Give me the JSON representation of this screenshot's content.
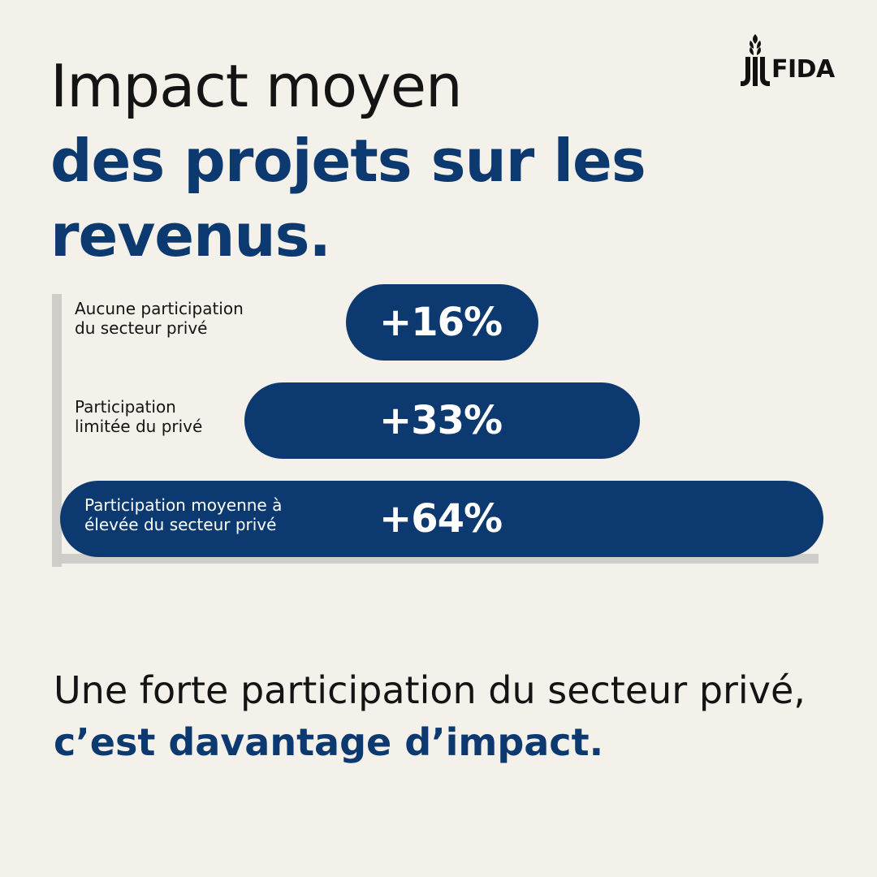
{
  "title": {
    "line1": "Impact moyen",
    "line2": "des projets sur les",
    "line3": "revenus."
  },
  "logo": {
    "text": "FIDA"
  },
  "chart_data": {
    "type": "bar",
    "orientation": "horizontal",
    "title": "Impact moyen des projets sur les revenus.",
    "categories": [
      "Aucune participation du secteur privé",
      "Participation limitée du privé",
      "Participation moyenne à élevée du secteur privé"
    ],
    "category_lines": [
      [
        "Aucune participation",
        "du secteur privé"
      ],
      [
        "Participation",
        "limitée du privé"
      ],
      [
        "Participation moyenne à",
        "élevée du secteur privé"
      ]
    ],
    "values": [
      16,
      33,
      64
    ],
    "value_labels": [
      "+16%",
      "+33%",
      "+64%"
    ],
    "unit": "%",
    "xlim": [
      0,
      64
    ],
    "colors": {
      "bar": "#0c3a70",
      "axis": "#cfcdc9",
      "background": "#f3f1ea"
    }
  },
  "footer": {
    "text_plain": "Une forte participation du secteur privé, ",
    "text_emphasis": "c’est davantage d’impact."
  }
}
